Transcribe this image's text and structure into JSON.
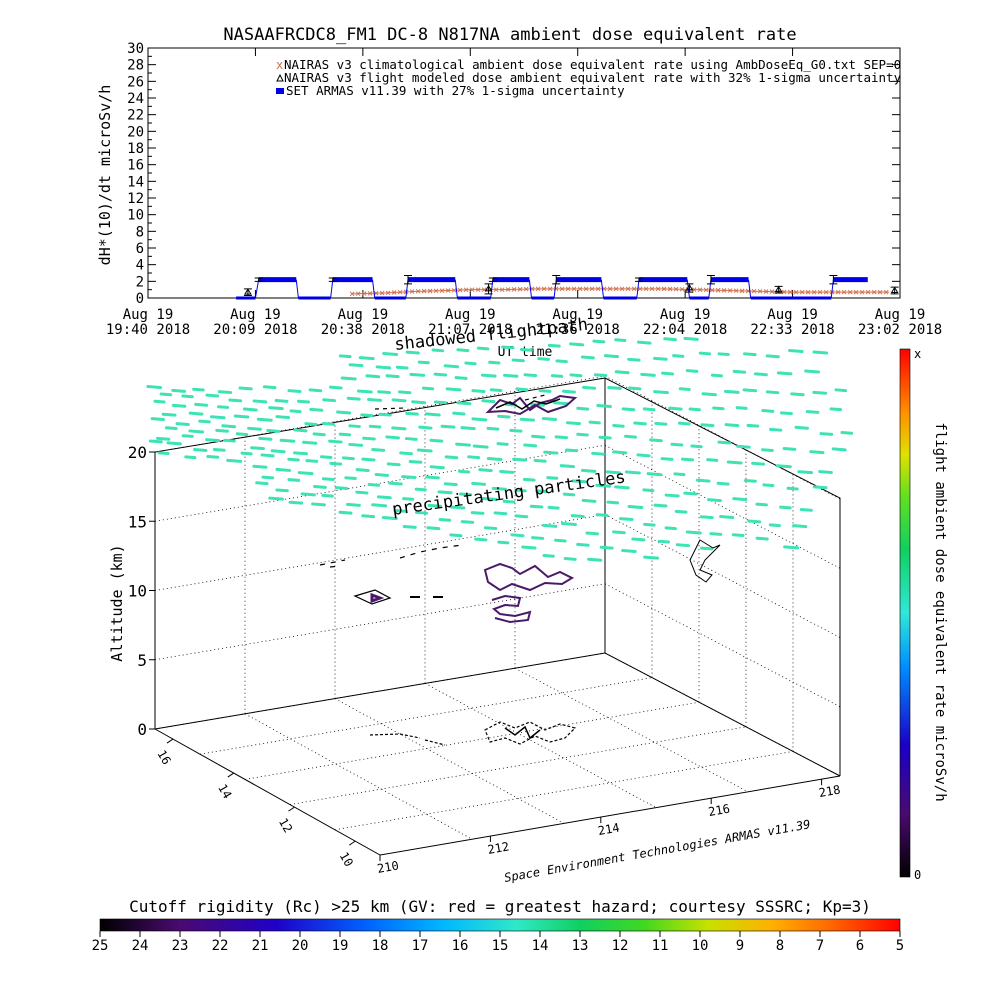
{
  "chart_data": [
    {
      "type": "line",
      "title": "NASAAFRCDC8_FM1 DC-8   N817NA ambient dose equivalent rate",
      "xlabel": "UT time",
      "ylabel": "dH*(10)/dt microSv/h",
      "ylim": [
        0,
        30
      ],
      "y_ticks": [
        0,
        2,
        4,
        6,
        8,
        10,
        12,
        14,
        16,
        18,
        20,
        22,
        24,
        26,
        28,
        30
      ],
      "x_ticks": [
        {
          "date": "Aug 19",
          "time": "19:40 2018"
        },
        {
          "date": "Aug 19",
          "time": "20:09 2018"
        },
        {
          "date": "Aug 19",
          "time": "20:38 2018"
        },
        {
          "date": "Aug 19",
          "time": "21:07 2018"
        },
        {
          "date": "Aug 19",
          "time": "21:36 2018"
        },
        {
          "date": "Aug 19",
          "time": "22:04 2018"
        },
        {
          "date": "Aug 19",
          "time": "22:33 2018"
        },
        {
          "date": "Aug 19",
          "time": "23:02 2018"
        }
      ],
      "xlim": [
        0,
        7
      ],
      "overlay_text": "shadowed flightpath",
      "legend_position": "top-right",
      "series": [
        {
          "name": "NAIRAS v3 climatological ambient dose equivalent rate using AmbDoseEq_G0.txt SEP=0",
          "color": "#d0704c",
          "marker": "x",
          "x": [
            1.9,
            2.2,
            2.5,
            2.8,
            3.0,
            3.3,
            3.6,
            3.9,
            4.2,
            4.5,
            4.8,
            5.1,
            5.4,
            5.7,
            6.0,
            6.3,
            6.6,
            6.9
          ],
          "values": [
            0.5,
            0.6,
            0.8,
            0.9,
            1.0,
            1.0,
            1.1,
            1.1,
            1.1,
            1.1,
            1.1,
            1.0,
            0.9,
            0.8,
            0.7,
            0.7,
            0.7,
            0.7
          ]
        },
        {
          "name": "NAIRAS v3 flight modeled dose ambient equivalent rate with 32% 1-sigma uncertainty",
          "color": "#000000",
          "marker": "triangle",
          "x": [
            0.93,
            3.17,
            5.04,
            5.87,
            6.95
          ],
          "values": [
            0.7,
            1.1,
            1.2,
            1.0,
            0.9
          ],
          "err": [
            0.4,
            0.6,
            0.5,
            0.4,
            0.4
          ]
        },
        {
          "name": "SET ARMAS v11.39 with 27% 1-sigma uncertainty",
          "color": "#0000e8",
          "marker": "square",
          "x": [
            0.8,
            1.03,
            1.38,
            1.72,
            2.42,
            2.86,
            3.21,
            3.56,
            3.8,
            4.22,
            4.57,
            5.02,
            5.24,
            5.59,
            6.38,
            6.7
          ],
          "values": [
            0,
            2.2,
            0,
            2.2,
            0,
            2.2,
            0,
            2.2,
            0,
            2.2,
            0,
            2.2,
            0,
            2.2,
            0,
            2.2
          ],
          "segments": [
            [
              0.82,
              1.0,
              0
            ],
            [
              1.03,
              1.38,
              2.2
            ],
            [
              1.4,
              1.7,
              0
            ],
            [
              1.72,
              2.09,
              2.2
            ],
            [
              2.11,
              2.4,
              0
            ],
            [
              2.42,
              2.86,
              2.2
            ],
            [
              2.88,
              3.19,
              0
            ],
            [
              3.21,
              3.55,
              2.2
            ],
            [
              3.57,
              3.78,
              0
            ],
            [
              3.8,
              4.22,
              2.2
            ],
            [
              4.24,
              4.55,
              0
            ],
            [
              4.57,
              5.02,
              2.2
            ],
            [
              5.04,
              5.22,
              0
            ],
            [
              5.24,
              5.59,
              2.2
            ],
            [
              5.61,
              6.36,
              0
            ],
            [
              6.38,
              6.7,
              2.2
            ]
          ],
          "err": [
            [
              1.03,
              2.2,
              0.2
            ],
            [
              1.72,
              2.2,
              0.2
            ],
            [
              2.42,
              2.2,
              0.5
            ],
            [
              3.21,
              2.2,
              0.2
            ],
            [
              3.8,
              2.2,
              0.5
            ],
            [
              4.57,
              2.2,
              0.2
            ],
            [
              5.24,
              2.2,
              0.5
            ],
            [
              6.38,
              2.2,
              0.5
            ]
          ]
        }
      ]
    },
    {
      "type": "scatter",
      "projection": "3d",
      "zlabel": "Altitude (km)",
      "xlabel": "Space Environment Technologies ARMAS v11.39",
      "z_ticks": [
        0,
        5,
        10,
        15,
        20
      ],
      "lat_ticks": [
        10,
        12,
        14,
        16
      ],
      "lon_ticks": [
        210,
        212,
        214,
        216,
        218
      ],
      "annotation": "precipitating particles",
      "colorbar": {
        "label": "flight ambient dose equivalent rate microSv/h",
        "min_label": "0",
        "max_label": "x"
      },
      "bottom_colorbar": {
        "label": "Cutoff rigidity (Rc) >25 km (GV: red = greatest hazard; courtesy SSSRC; Kp=3)",
        "ticks": [
          "25",
          "24",
          "23",
          "22",
          "21",
          "20",
          "19",
          "18",
          "17",
          "16",
          "15",
          "14",
          "13",
          "12",
          "11",
          "10",
          "9",
          "8",
          "7",
          "6",
          "5"
        ]
      }
    }
  ],
  "colors": {
    "accent_cyan": "#3de3b4",
    "armas_blue": "#0000e8",
    "nairas_orange": "#d0704c",
    "path_purple": "#4a1a6a"
  }
}
